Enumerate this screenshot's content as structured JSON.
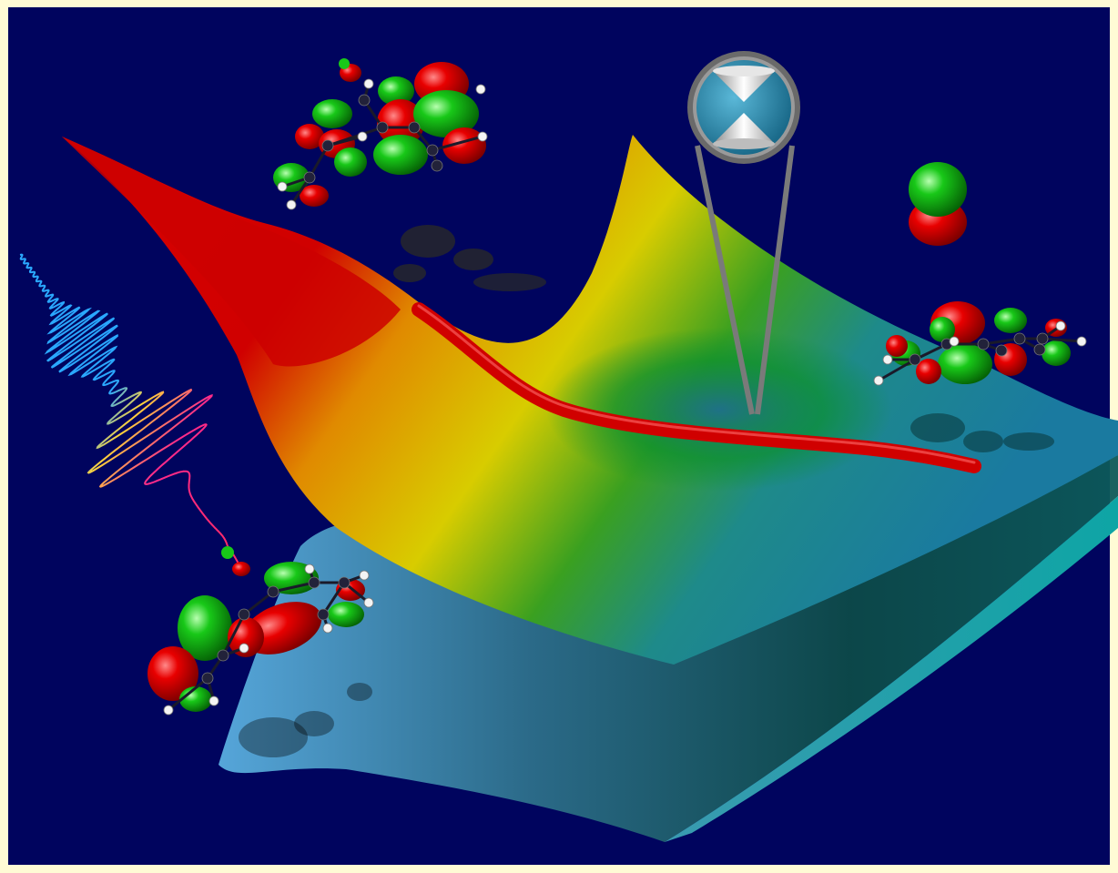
{
  "scene": {
    "frame_color": "#fffbd5",
    "background_color": "#00045e",
    "upper_surface_colors": [
      "#d80000",
      "#e0a000",
      "#d6cf00",
      "#0a9a20",
      "#1e7f9a"
    ],
    "lower_surface_colors": [
      "#5aaee0",
      "#0f5d62",
      "#0d9a9a"
    ],
    "reaction_path_color": "#d00000",
    "orbital_colors": {
      "positive": "#e00000",
      "negative": "#10c020"
    },
    "pulse_colors": [
      "#2aa8ff",
      "#ffd23a",
      "#ff2a8a"
    ],
    "conical_intersection_icon": "double-cone-icon",
    "objects": [
      "potential-energy-surface-upper",
      "potential-energy-surface-lower",
      "reaction-path",
      "conical-intersection-magnifier",
      "laser-pulse",
      "molecule-top-left",
      "molecule-right",
      "molecule-bottom-left",
      "atomic-orbital"
    ]
  }
}
